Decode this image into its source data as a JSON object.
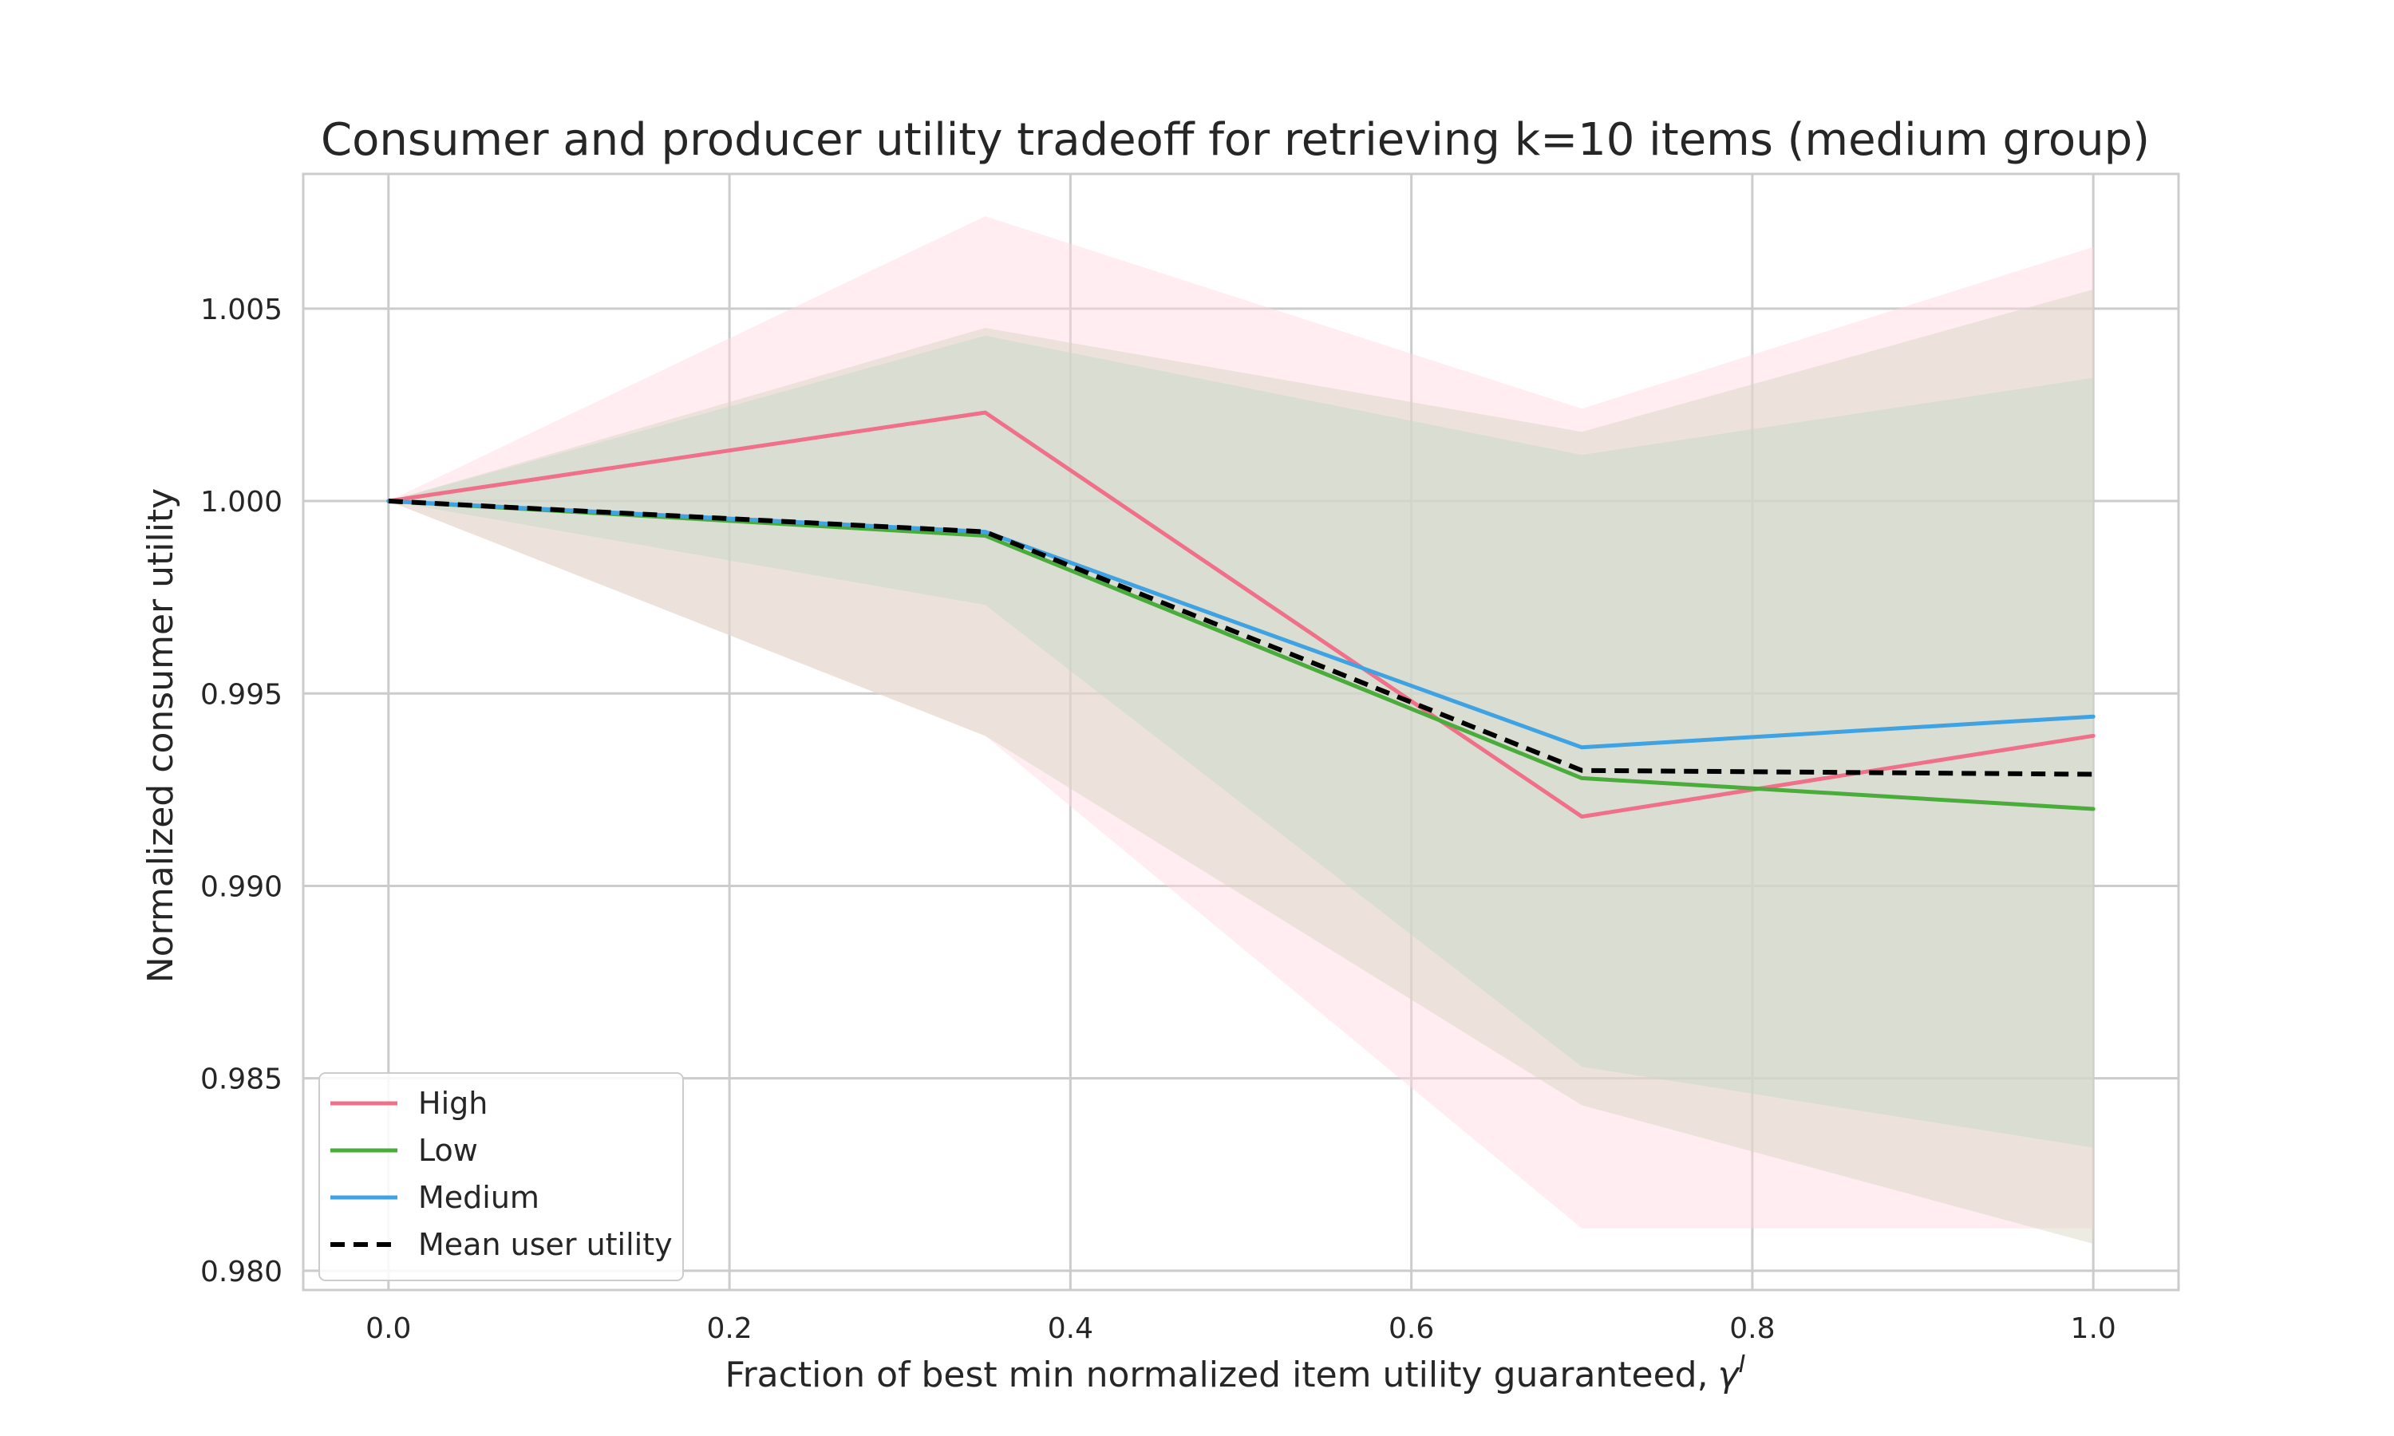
{
  "chart_data": {
    "type": "line",
    "title": "Consumer and producer utility tradeoff for retrieving k=10 items (medium group)",
    "xlabel": "Fraction of best min normalized item utility guaranteed,",
    "xlabel_symbol": "γ",
    "xlabel_superscript": "I",
    "ylabel": "Normalized consumer utility",
    "xlim": [
      -0.05,
      1.05
    ],
    "ylim": [
      0.9795,
      1.0085
    ],
    "x_ticks": [
      0.0,
      0.2,
      0.4,
      0.6,
      0.8,
      1.0
    ],
    "x_tick_labels": [
      "0.0",
      "0.2",
      "0.4",
      "0.6",
      "0.8",
      "1.0"
    ],
    "y_ticks": [
      0.98,
      0.985,
      0.99,
      0.995,
      1.0,
      1.005
    ],
    "y_tick_labels": [
      "0.980",
      "0.985",
      "0.990",
      "0.995",
      "1.000",
      "1.005"
    ],
    "grid": true,
    "legend_position": "lower-left",
    "x": [
      0.0,
      0.35,
      0.7,
      1.0
    ],
    "series": [
      {
        "name": "High",
        "color": "#f0708a",
        "dash": "solid",
        "values": [
          1.0,
          1.0023,
          0.9918,
          0.9939
        ],
        "band_upper": [
          1.0,
          1.0074,
          1.0024,
          1.0066
        ],
        "band_lower": [
          1.0,
          0.9939,
          0.9811,
          0.9811
        ],
        "band_color": "#ffd6df",
        "band_opacity": 0.45
      },
      {
        "name": "Low",
        "color": "#4aac3a",
        "dash": "solid",
        "values": [
          1.0,
          0.9991,
          0.9928,
          0.992
        ],
        "band_upper": [
          1.0,
          1.0043,
          1.0012,
          1.0032
        ],
        "band_lower": [
          1.0,
          0.9973,
          0.9853,
          0.9832
        ],
        "band_color": "#b4dccc",
        "band_opacity": 0.45
      },
      {
        "name": "Medium",
        "color": "#3fa2e3",
        "dash": "solid",
        "values": [
          1.0,
          0.9992,
          0.9936,
          0.9944
        ],
        "band_upper": [
          1.0,
          1.0045,
          1.0018,
          1.0055
        ],
        "band_lower": [
          1.0,
          0.9939,
          0.9843,
          0.9807
        ],
        "band_color": "#d8d4c0",
        "band_opacity": 0.45
      },
      {
        "name": "Mean user utility",
        "color": "#000000",
        "dash": "dashed",
        "values": [
          1.0,
          0.9992,
          0.993,
          0.9929
        ]
      }
    ]
  }
}
